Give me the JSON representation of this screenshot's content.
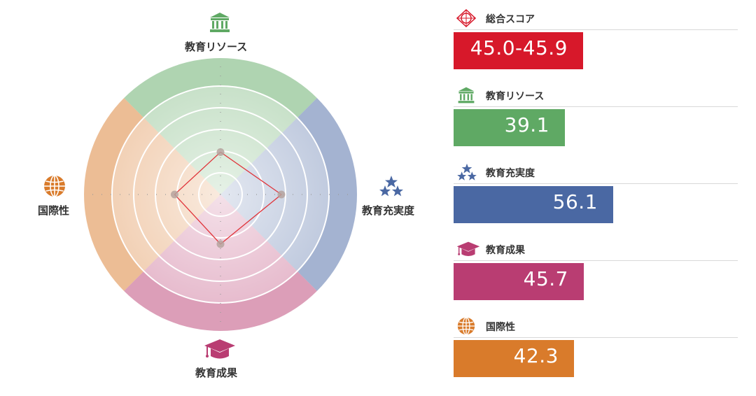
{
  "chart_data": {
    "type": "radar",
    "axes": [
      {
        "key": "resources",
        "label": "教育リソース",
        "icon": "bank-icon",
        "color": "#5fa964",
        "value": 39.1
      },
      {
        "key": "satisfaction",
        "label": "教育充実度",
        "icon": "stars-icon",
        "color": "#4a68a3",
        "value": 56.1
      },
      {
        "key": "outcomes",
        "label": "教育成果",
        "icon": "graduation-cap-icon",
        "color": "#b93d72",
        "value": 45.7
      },
      {
        "key": "international",
        "label": "国際性",
        "icon": "globe-icon",
        "color": "#d97b2b",
        "value": 42.3
      }
    ],
    "range": [
      0,
      100
    ],
    "grid_levels": [
      20,
      40,
      60,
      80,
      100
    ]
  },
  "panel": {
    "items": [
      {
        "key": "total",
        "label": "総合スコア",
        "icon": "target-icon",
        "color": "#d7182a",
        "value_text": "45.0-45.9",
        "bar_fraction": 0.455
      },
      {
        "key": "resources",
        "label": "教育リソース",
        "icon": "bank-icon",
        "color": "#5fa964",
        "value_text": "39.1",
        "bar_fraction": 0.391
      },
      {
        "key": "satisfaction",
        "label": "教育充実度",
        "icon": "stars-icon",
        "color": "#4a68a3",
        "value_text": "56.1",
        "bar_fraction": 0.561
      },
      {
        "key": "outcomes",
        "label": "教育成果",
        "icon": "graduation-cap-icon",
        "color": "#b93d72",
        "value_text": "45.7",
        "bar_fraction": 0.457
      },
      {
        "key": "international",
        "label": "国際性",
        "icon": "globe-icon",
        "color": "#d97b2b",
        "value_text": "42.3",
        "bar_fraction": 0.423
      }
    ]
  }
}
